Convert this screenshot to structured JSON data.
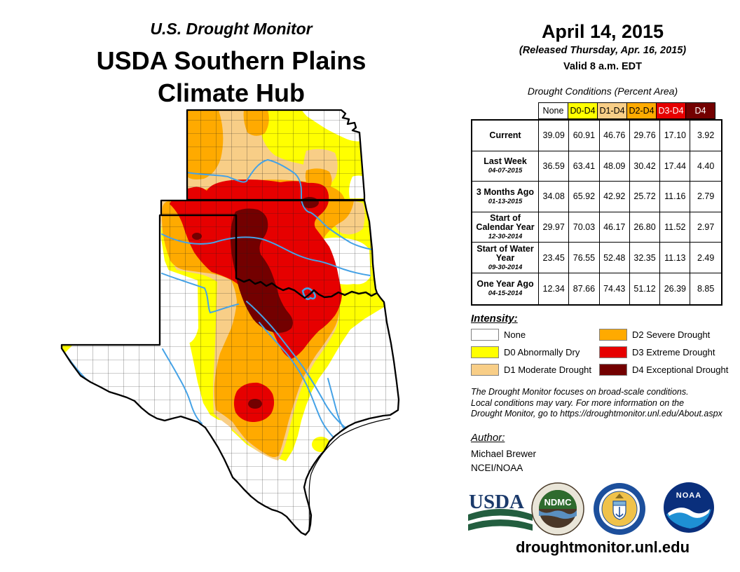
{
  "header": {
    "title_small": "U.S. Drought Monitor",
    "title_line1": "USDA Southern Plains",
    "title_line2": "Climate Hub"
  },
  "date_panel": {
    "date": "April 14, 2015",
    "released": "(Released Thursday, Apr. 16, 2015)",
    "valid": "Valid 8 a.m. EDT"
  },
  "table": {
    "caption": "Drought Conditions (Percent Area)",
    "col_headers": [
      "None",
      "D0-D4",
      "D1-D4",
      "D2-D4",
      "D3-D4",
      "D4"
    ],
    "header_colors": [
      "#FFFFFF",
      "#FFFF00",
      "#F8CE87",
      "#FFAA00",
      "#E60000",
      "#730000"
    ],
    "header_text_colors": [
      "#000000",
      "#000000",
      "#000000",
      "#000000",
      "#FFFFFF",
      "#FFFFFF"
    ],
    "rows": [
      {
        "label": "Current",
        "date": "",
        "values": [
          "39.09",
          "60.91",
          "46.76",
          "29.76",
          "17.10",
          "3.92"
        ]
      },
      {
        "label": "Last Week",
        "date": "04-07-2015",
        "values": [
          "36.59",
          "63.41",
          "48.09",
          "30.42",
          "17.44",
          "4.40"
        ]
      },
      {
        "label": "3 Months Ago",
        "date": "01-13-2015",
        "values": [
          "34.08",
          "65.92",
          "42.92",
          "25.72",
          "11.16",
          "2.79"
        ]
      },
      {
        "label": "Start of Calendar Year",
        "date": "12-30-2014",
        "values": [
          "29.97",
          "70.03",
          "46.17",
          "26.80",
          "11.52",
          "2.97"
        ]
      },
      {
        "label": "Start of Water Year",
        "date": "09-30-2014",
        "values": [
          "23.45",
          "76.55",
          "52.48",
          "32.35",
          "11.13",
          "2.49"
        ]
      },
      {
        "label": "One Year Ago",
        "date": "04-15-2014",
        "values": [
          "12.34",
          "87.66",
          "74.43",
          "51.12",
          "26.39",
          "8.85"
        ]
      }
    ]
  },
  "legend": {
    "title": "Intensity:",
    "items": [
      {
        "label": "None",
        "color": "#FFFFFF"
      },
      {
        "label": "D0 Abnormally Dry",
        "color": "#FFFF00"
      },
      {
        "label": "D1 Moderate Drought",
        "color": "#F8CE87"
      },
      {
        "label": "D2 Severe Drought",
        "color": "#FFAA00"
      },
      {
        "label": "D3 Extreme Drought",
        "color": "#E60000"
      },
      {
        "label": "D4 Exceptional Drought",
        "color": "#730000"
      }
    ]
  },
  "disclaimer": {
    "line1": "The Drought Monitor focuses on broad-scale conditions.",
    "line2": "Local conditions may vary. For more information on the",
    "line3": "Drought Monitor, go to https://droughtmonitor.unl.edu/About.aspx"
  },
  "author": {
    "title": "Author:",
    "name": "Michael Brewer",
    "org": "NCEI/NOAA"
  },
  "footer": {
    "url": "droughtmonitor.unl.edu"
  },
  "logos": {
    "usda_text": "USDA",
    "ndmc_text": "NDMC",
    "noaa_text": "NOAA"
  },
  "map": {
    "states": [
      "Kansas",
      "Oklahoma",
      "Texas"
    ],
    "colors": {
      "none": "#FFFFFF",
      "d0": "#FFFF00",
      "d1": "#F8CE87",
      "d2": "#FFAA00",
      "d3": "#E60000",
      "d4": "#730000",
      "river": "#45A2E6",
      "border": "#000000"
    }
  }
}
